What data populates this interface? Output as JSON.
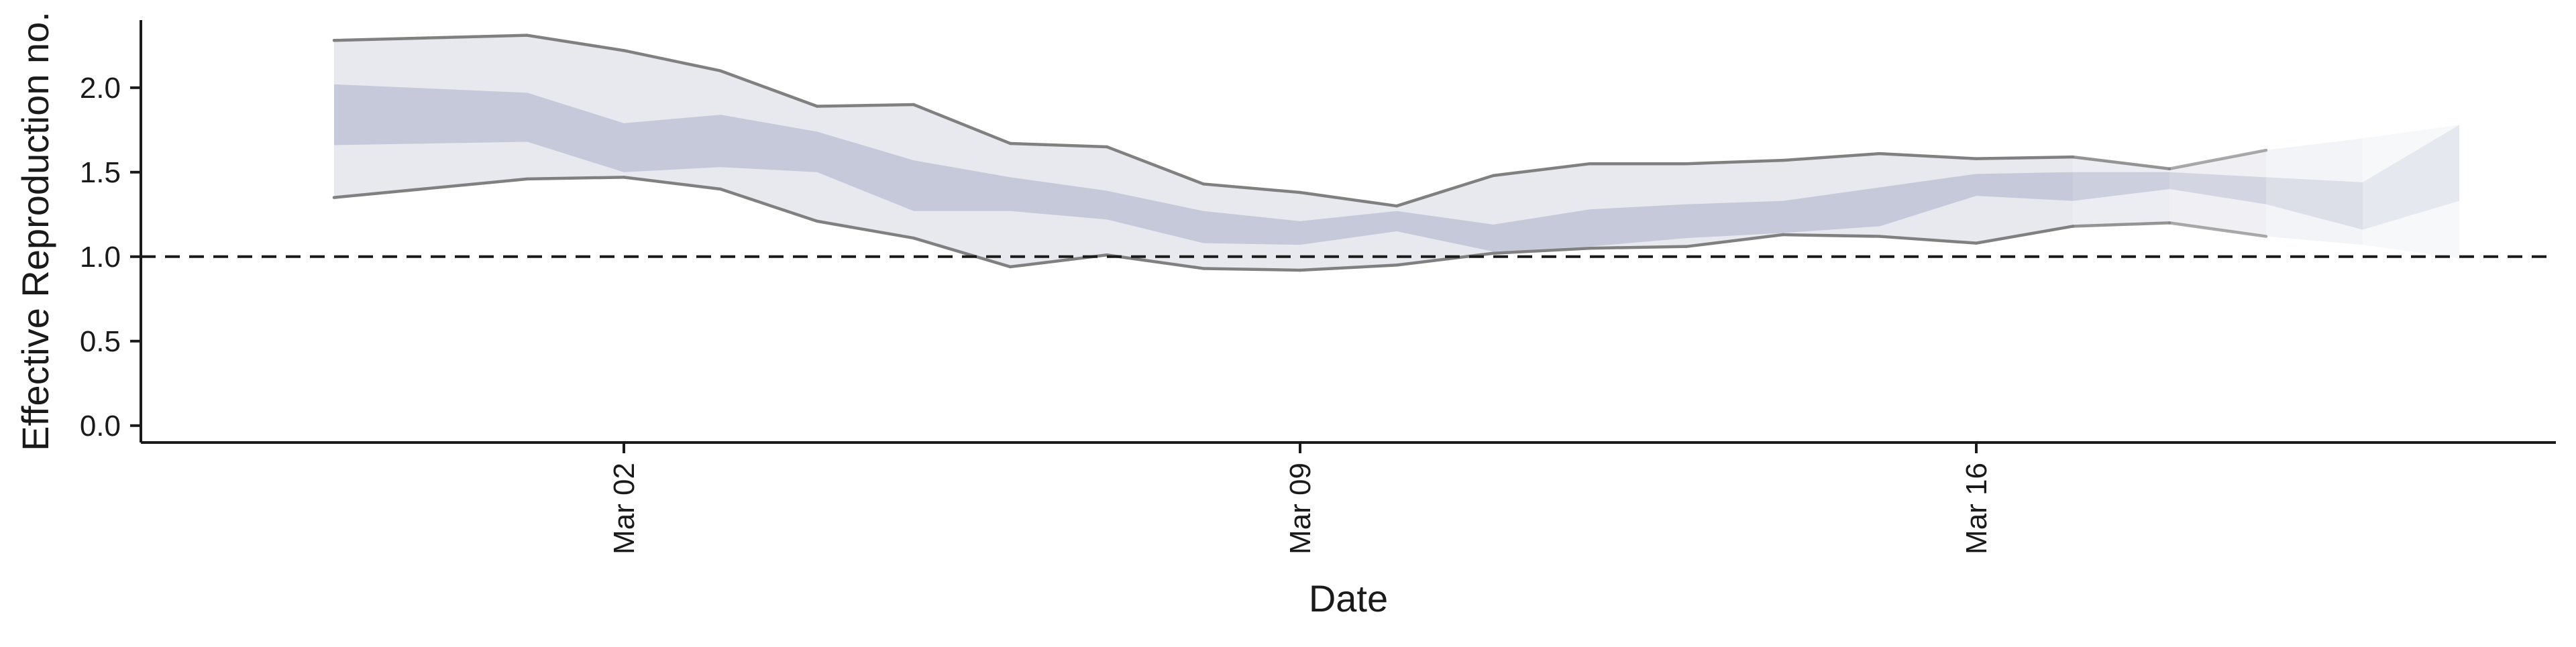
{
  "chart_data": {
    "type": "area",
    "title": "",
    "xlabel": "Date",
    "ylabel": "Effective Reproduction no.",
    "x_tick_labels": [
      "Mar 02",
      "Mar 09",
      "Mar 16"
    ],
    "x_tick_dates": [
      "2020-03-02",
      "2020-03-09",
      "2020-03-16"
    ],
    "xlim": [
      "2020-02-26",
      "2020-03-22"
    ],
    "ylim": [
      -0.1,
      2.4
    ],
    "y_ticks": [
      0.0,
      0.5,
      1.0,
      1.5,
      2.0
    ],
    "y_tick_labels": [
      "0.0",
      "0.5",
      "1.0",
      "1.5",
      "2.0"
    ],
    "reference_line": {
      "y": 1.0,
      "style": "dashed"
    },
    "grid": false,
    "colors": {
      "outer_band": "#e8e9ef",
      "inner_band": "#c5c9da",
      "bound_line": "#808080",
      "reference": "#1a1a1a"
    },
    "x": [
      "2020-02-28",
      "2020-03-01",
      "2020-03-02",
      "2020-03-03",
      "2020-03-04",
      "2020-03-05",
      "2020-03-06",
      "2020-03-07",
      "2020-03-08",
      "2020-03-09",
      "2020-03-10",
      "2020-03-11",
      "2020-03-12",
      "2020-03-13",
      "2020-03-14",
      "2020-03-15",
      "2020-03-16",
      "2020-03-17",
      "2020-03-18",
      "2020-03-19",
      "2020-03-20",
      "2020-03-21"
    ],
    "series": [
      {
        "role": "outer_upper",
        "values": [
          2.28,
          2.31,
          2.22,
          2.1,
          1.89,
          1.9,
          1.67,
          1.65,
          1.43,
          1.38,
          1.3,
          1.48,
          1.55,
          1.55,
          1.57,
          1.61,
          1.58,
          1.59,
          1.52,
          1.63,
          1.7,
          1.78
        ]
      },
      {
        "role": "inner_upper",
        "values": [
          2.02,
          1.97,
          1.79,
          1.84,
          1.74,
          1.57,
          1.47,
          1.39,
          1.27,
          1.21,
          1.27,
          1.19,
          1.28,
          1.31,
          1.33,
          1.41,
          1.49,
          1.5,
          1.5,
          1.47,
          1.44,
          1.78
        ]
      },
      {
        "role": "inner_lower",
        "values": [
          1.66,
          1.68,
          1.5,
          1.53,
          1.5,
          1.27,
          1.27,
          1.22,
          1.08,
          1.07,
          1.15,
          1.03,
          1.06,
          1.11,
          1.14,
          1.18,
          1.36,
          1.33,
          1.4,
          1.31,
          1.16,
          1.33
        ]
      },
      {
        "role": "outer_lower",
        "values": [
          1.35,
          1.46,
          1.47,
          1.4,
          1.21,
          1.11,
          0.94,
          1.01,
          0.93,
          0.92,
          0.95,
          1.02,
          1.05,
          1.06,
          1.13,
          1.12,
          1.08,
          1.18,
          1.2,
          1.12,
          1.07,
          0.99
        ]
      }
    ]
  }
}
